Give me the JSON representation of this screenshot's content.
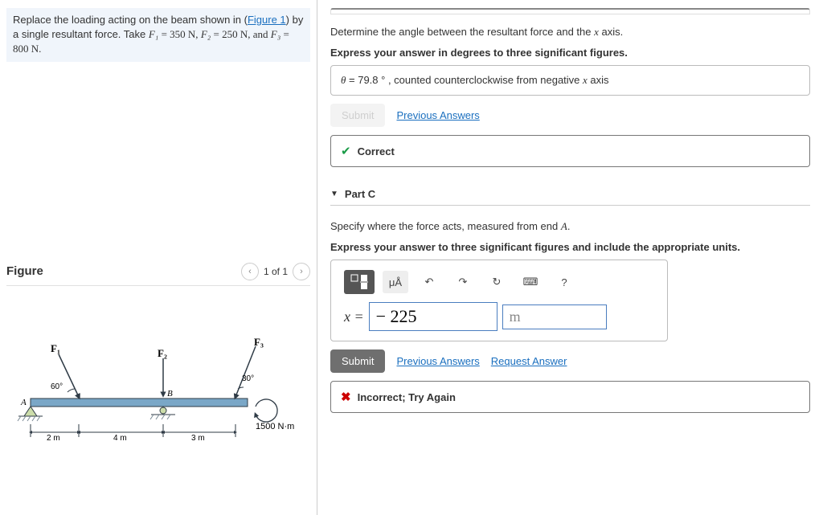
{
  "problem": {
    "text_before_link": "Replace the loading acting on the beam shown in (",
    "figure_link": "Figure 1",
    "text_after_link": ") by a single resultant force. Take ",
    "F1_label": "F₁",
    "F1_val_text": " = 350 N, ",
    "F2_label": "F₂",
    "F2_val_text": " = 250 N, and ",
    "F3_label": "F₃",
    "F3_val_text": " = 800 N."
  },
  "figure": {
    "header": "Figure",
    "nav_pos": "1 of 1",
    "labels": {
      "F1": "F₁",
      "F2": "F₂",
      "F3": "F₃",
      "ang60": "60°",
      "ang30": "30°",
      "A": "A",
      "B": "B",
      "d2": "2 m",
      "d4": "4 m",
      "d3": "3 m",
      "moment": "1500 N·m"
    },
    "colors": {
      "beam": "#7aa7c7",
      "support": "#6b8aa0",
      "arrow": "#2f3b46",
      "text": "#2f3b46",
      "ground": "#7a8a95"
    }
  },
  "partB": {
    "prompt1": "Determine the angle between the resultant force and the x axis.",
    "prompt2": "Express your answer in degrees to three significant figures.",
    "answer_text": "θ = 79.8 ° , counted counterclockwise from negative x axis",
    "theta": "θ",
    "submit": "Submit",
    "prev": "Previous Answers",
    "feedback": "Correct"
  },
  "partC": {
    "header": "Part C",
    "prompt1": "Specify where the force acts, measured from end A.",
    "prompt2": "Express your answer to three significant figures and include the appropriate units.",
    "toolbar": {
      "frac": "▢/▢",
      "units": "μÅ",
      "undo": "↶",
      "redo": "↷",
      "reset": "↻",
      "keyboard": "⌨",
      "help": "?"
    },
    "x_label": "x =",
    "value": "− 225",
    "unit": "m",
    "submit": "Submit",
    "prev": "Previous Answers",
    "req": "Request Answer",
    "feedback": "Incorrect; Try Again"
  },
  "colors": {
    "link": "#1a6fbf",
    "correct": "#1a9b47",
    "incorrect": "#cc0000",
    "submit_bg": "#6f6f6f",
    "input_border": "#4a7dbf"
  }
}
